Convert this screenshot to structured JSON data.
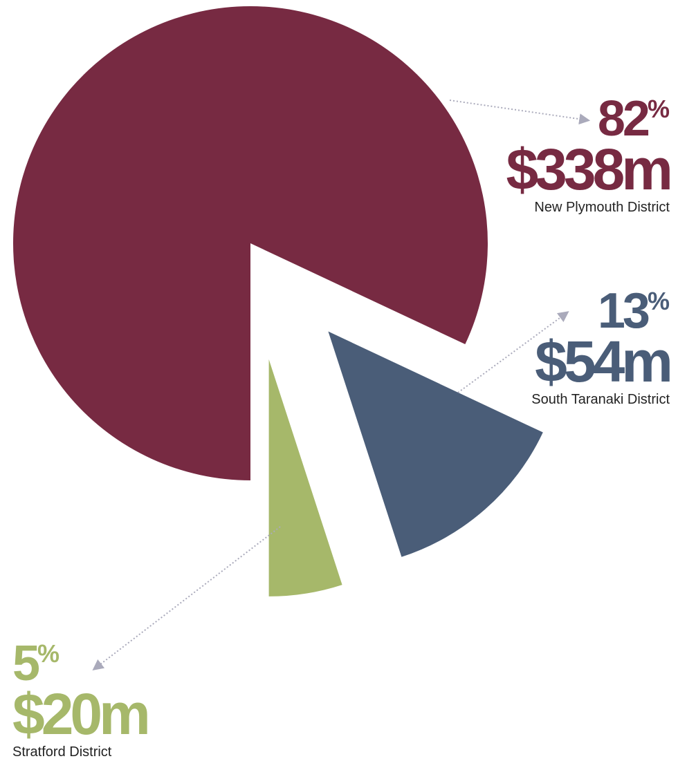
{
  "chart_data": {
    "type": "pie",
    "categories": [
      "New Plymouth District",
      "South Taranaki District",
      "Stratford District"
    ],
    "values": [
      82,
      13,
      5
    ],
    "unit": "%",
    "amount_labels": [
      "$338m",
      "$54m",
      "$20m"
    ],
    "colors": [
      "#772a42",
      "#4a5d78",
      "#a6b86a"
    ]
  }
}
